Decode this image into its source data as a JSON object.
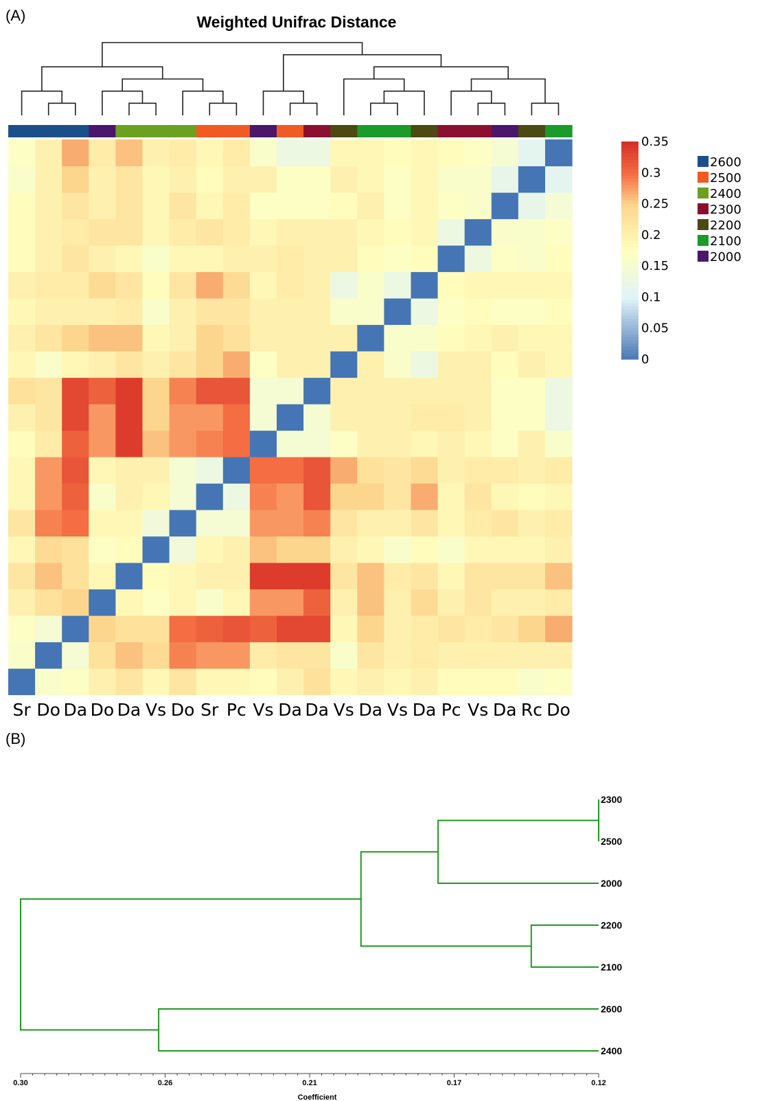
{
  "panel_a": {
    "label": "(A)",
    "title": "Weighted Unifrac Distance"
  },
  "panel_b": {
    "label": "(B)",
    "xlabel": "Coefficient"
  },
  "chart_data": [
    {
      "type": "heatmap",
      "title": "Weighted Unifrac Distance",
      "column_labels": [
        "Sr",
        "Do",
        "Da",
        "Do",
        "Da",
        "Vs",
        "Do",
        "Sr",
        "Pc",
        "Vs",
        "Da",
        "Da",
        "Vs",
        "Da",
        "Vs",
        "Da",
        "Pc",
        "Vs",
        "Da",
        "Rc",
        "Do"
      ],
      "column_groups": [
        "2600",
        "2600",
        "2600",
        "2000",
        "2400",
        "2400",
        "2400",
        "2500",
        "2500",
        "2000",
        "2500",
        "2300",
        "2200",
        "2100",
        "2100",
        "2200",
        "2300",
        "2300",
        "2000",
        "2200",
        "2100"
      ],
      "colorbar": {
        "min": 0,
        "max": 0.35,
        "ticks": [
          "0.35",
          "0.3",
          "0.25",
          "0.2",
          "0.15",
          "0.1",
          "0.05",
          "0"
        ]
      },
      "legend": [
        {
          "label": "2600",
          "color": "#1b4f8a"
        },
        {
          "label": "2500",
          "color": "#f15a22"
        },
        {
          "label": "2400",
          "color": "#6aa121"
        },
        {
          "label": "2300",
          "color": "#8b1030"
        },
        {
          "label": "2200",
          "color": "#4a4a12"
        },
        {
          "label": "2100",
          "color": "#1a9b2a"
        },
        {
          "label": "2000",
          "color": "#4a176b"
        }
      ],
      "matrix": [
        [
          0,
          0.16,
          0.17,
          0.2,
          0.22,
          0.19,
          0.22,
          0.19,
          0.19,
          0.18,
          0.2,
          0.23,
          0.19,
          0.2,
          0.19,
          0.2,
          0.18,
          0.18,
          0.18,
          0.16,
          0.17
        ],
        [
          0.16,
          0,
          0.15,
          0.23,
          0.26,
          0.24,
          0.29,
          0.28,
          0.28,
          0.21,
          0.22,
          0.22,
          0.16,
          0.22,
          0.2,
          0.21,
          0.2,
          0.2,
          0.2,
          0.2,
          0.2
        ],
        [
          0.17,
          0.15,
          0,
          0.25,
          0.23,
          0.23,
          0.3,
          0.31,
          0.32,
          0.31,
          0.33,
          0.33,
          0.19,
          0.25,
          0.2,
          0.21,
          0.22,
          0.21,
          0.22,
          0.25,
          0.27
        ],
        [
          0.2,
          0.23,
          0.25,
          0,
          0.19,
          0.17,
          0.19,
          0.16,
          0.19,
          0.28,
          0.28,
          0.31,
          0.2,
          0.26,
          0.2,
          0.24,
          0.2,
          0.22,
          0.2,
          0.2,
          0.21
        ],
        [
          0.22,
          0.26,
          0.23,
          0.19,
          0,
          0.18,
          0.19,
          0.2,
          0.2,
          0.34,
          0.34,
          0.34,
          0.22,
          0.26,
          0.21,
          0.22,
          0.19,
          0.22,
          0.22,
          0.22,
          0.26
        ],
        [
          0.19,
          0.24,
          0.23,
          0.17,
          0.18,
          0,
          0.14,
          0.19,
          0.2,
          0.26,
          0.25,
          0.25,
          0.2,
          0.19,
          0.16,
          0.18,
          0.16,
          0.19,
          0.19,
          0.19,
          0.2
        ],
        [
          0.22,
          0.29,
          0.3,
          0.19,
          0.19,
          0.14,
          0,
          0.15,
          0.15,
          0.28,
          0.28,
          0.29,
          0.22,
          0.2,
          0.2,
          0.22,
          0.19,
          0.21,
          0.22,
          0.2,
          0.21
        ],
        [
          0.19,
          0.28,
          0.31,
          0.16,
          0.2,
          0.19,
          0.15,
          0,
          0.13,
          0.29,
          0.28,
          0.32,
          0.25,
          0.25,
          0.22,
          0.27,
          0.19,
          0.22,
          0.19,
          0.18,
          0.19
        ],
        [
          0.19,
          0.28,
          0.32,
          0.19,
          0.2,
          0.2,
          0.15,
          0.13,
          0,
          0.3,
          0.3,
          0.32,
          0.27,
          0.23,
          0.22,
          0.24,
          0.2,
          0.21,
          0.21,
          0.2,
          0.21
        ],
        [
          0.18,
          0.21,
          0.31,
          0.28,
          0.34,
          0.26,
          0.28,
          0.29,
          0.3,
          0,
          0.15,
          0.15,
          0.17,
          0.2,
          0.2,
          0.19,
          0.2,
          0.19,
          0.17,
          0.2,
          0.16
        ],
        [
          0.2,
          0.22,
          0.33,
          0.28,
          0.34,
          0.25,
          0.28,
          0.28,
          0.3,
          0.15,
          0,
          0.15,
          0.2,
          0.2,
          0.2,
          0.21,
          0.21,
          0.2,
          0.17,
          0.17,
          0.13
        ],
        [
          0.23,
          0.22,
          0.33,
          0.31,
          0.34,
          0.25,
          0.29,
          0.32,
          0.32,
          0.15,
          0.15,
          0,
          0.2,
          0.2,
          0.2,
          0.2,
          0.2,
          0.2,
          0.17,
          0.17,
          0.13
        ],
        [
          0.19,
          0.16,
          0.19,
          0.2,
          0.22,
          0.2,
          0.22,
          0.25,
          0.27,
          0.17,
          0.2,
          0.2,
          0,
          0.2,
          0.16,
          0.13,
          0.2,
          0.2,
          0.18,
          0.2,
          0.19
        ],
        [
          0.2,
          0.22,
          0.25,
          0.26,
          0.26,
          0.19,
          0.2,
          0.25,
          0.23,
          0.2,
          0.2,
          0.2,
          0.2,
          0,
          0.16,
          0.16,
          0.18,
          0.19,
          0.2,
          0.19,
          0.19
        ],
        [
          0.19,
          0.2,
          0.2,
          0.2,
          0.21,
          0.16,
          0.2,
          0.22,
          0.22,
          0.2,
          0.2,
          0.2,
          0.16,
          0.16,
          0,
          0.13,
          0.17,
          0.18,
          0.17,
          0.17,
          0.18
        ],
        [
          0.2,
          0.21,
          0.21,
          0.24,
          0.22,
          0.18,
          0.22,
          0.27,
          0.24,
          0.19,
          0.21,
          0.2,
          0.13,
          0.16,
          0.13,
          0,
          0.18,
          0.19,
          0.19,
          0.19,
          0.19
        ],
        [
          0.18,
          0.2,
          0.22,
          0.2,
          0.19,
          0.16,
          0.19,
          0.19,
          0.2,
          0.2,
          0.21,
          0.2,
          0.2,
          0.18,
          0.17,
          0.18,
          0,
          0.13,
          0.17,
          0.16,
          0.18
        ],
        [
          0.18,
          0.2,
          0.21,
          0.22,
          0.22,
          0.19,
          0.21,
          0.22,
          0.21,
          0.19,
          0.2,
          0.2,
          0.2,
          0.19,
          0.18,
          0.19,
          0.13,
          0,
          0.16,
          0.16,
          0.17
        ],
        [
          0.18,
          0.2,
          0.22,
          0.2,
          0.22,
          0.19,
          0.22,
          0.19,
          0.21,
          0.17,
          0.17,
          0.17,
          0.18,
          0.2,
          0.17,
          0.19,
          0.17,
          0.16,
          0,
          0.12,
          0.15
        ],
        [
          0.16,
          0.2,
          0.25,
          0.2,
          0.22,
          0.19,
          0.2,
          0.18,
          0.2,
          0.2,
          0.17,
          0.17,
          0.2,
          0.19,
          0.17,
          0.19,
          0.16,
          0.16,
          0.12,
          0,
          0.11
        ],
        [
          0.17,
          0.2,
          0.27,
          0.21,
          0.26,
          0.2,
          0.21,
          0.19,
          0.21,
          0.16,
          0.13,
          0.13,
          0.19,
          0.19,
          0.18,
          0.19,
          0.18,
          0.17,
          0.15,
          0.11,
          0
        ]
      ]
    },
    {
      "type": "dendrogram",
      "xlabel": "Coefficient",
      "x_ticks": [
        "0.30",
        "0.26",
        "0.21",
        "0.17",
        "0.12"
      ],
      "xlim": [
        0.3,
        0.12
      ],
      "leaves": [
        "2300",
        "2500",
        "2000",
        "2200",
        "2100",
        "2600",
        "2400"
      ],
      "merges": [
        {
          "a": "2300",
          "b": "2500",
          "height": 0.12
        },
        {
          "a": "2200",
          "b": "2100",
          "height": 0.141
        },
        {
          "a": "2300+2500",
          "b": "2000",
          "height": 0.17
        },
        {
          "a": "2300+2500+2000",
          "b": "2200+2100",
          "height": 0.194
        },
        {
          "a": "2600",
          "b": "2400",
          "height": 0.257
        },
        {
          "a": "all-upper",
          "b": "2600+2400",
          "height": 0.3
        }
      ]
    }
  ]
}
